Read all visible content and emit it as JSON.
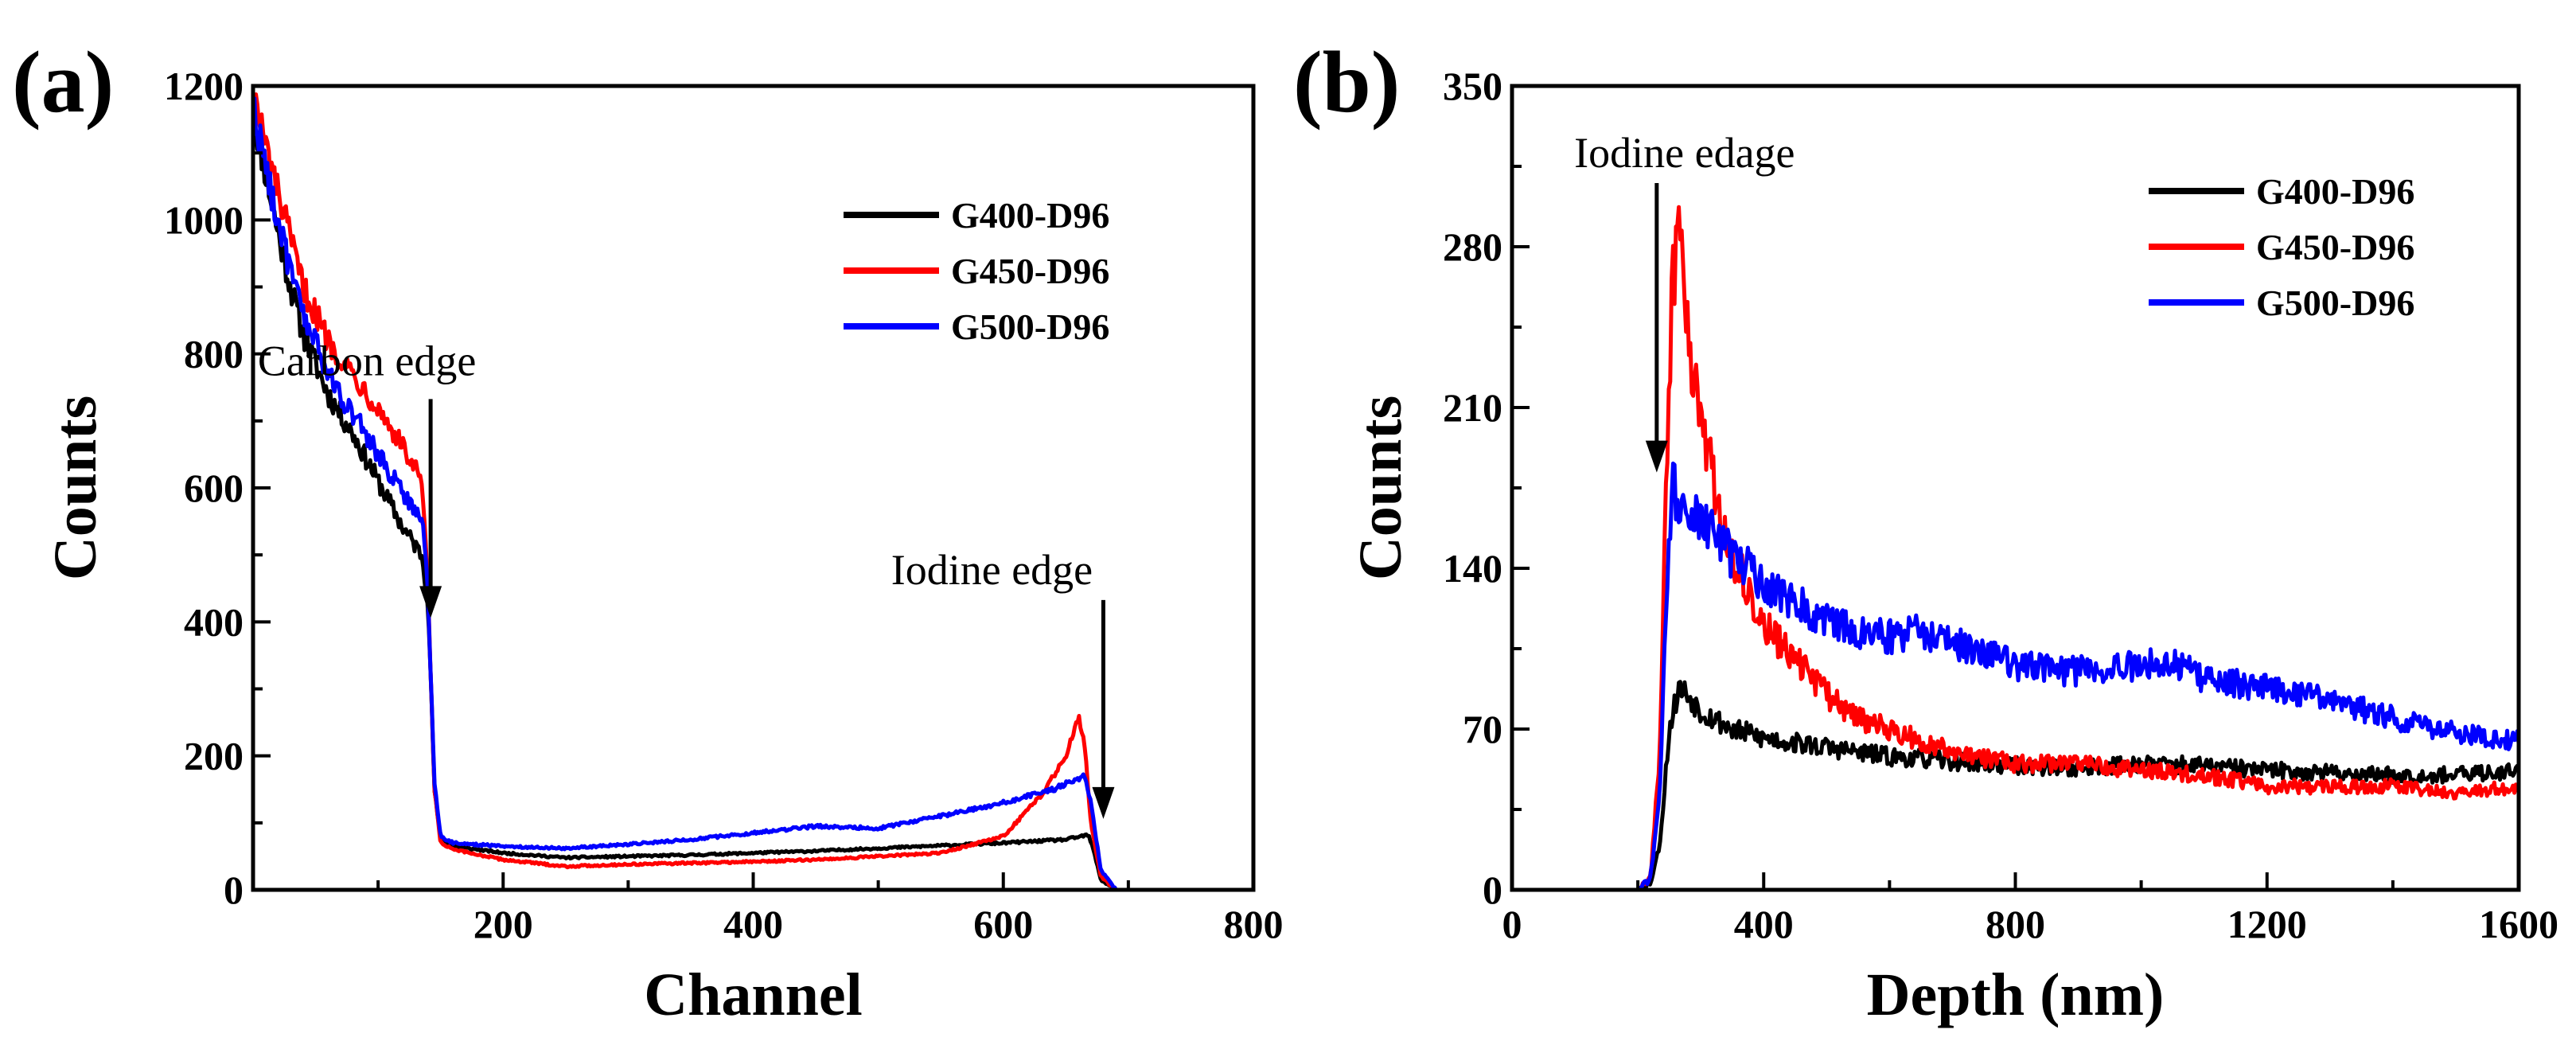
{
  "chart_data": [
    {
      "panel_label": "(a)",
      "type": "line",
      "xlabel": "Channel",
      "ylabel": "Counts",
      "xlim": [
        0,
        800
      ],
      "ylim": [
        0,
        1200
      ],
      "x_ticks": [
        200,
        400,
        600,
        800
      ],
      "y_ticks": [
        0,
        200,
        400,
        600,
        800,
        1000,
        1200
      ],
      "legend": {
        "position": "top-right",
        "entries": [
          "G400-D96",
          "G450-D96",
          "G500-D96"
        ]
      },
      "annotations": [
        {
          "text": "Carbon edge",
          "x": 142,
          "y": 400
        },
        {
          "text": "Iodine edge",
          "x": 680,
          "y": 100
        }
      ],
      "series": [
        {
          "name": "G400-D96",
          "color": "#000000",
          "points": [
            [
              0,
              1160
            ],
            [
              10,
              1070
            ],
            [
              20,
              980
            ],
            [
              30,
              900
            ],
            [
              40,
              830
            ],
            [
              60,
              740
            ],
            [
              80,
              680
            ],
            [
              100,
              610
            ],
            [
              120,
              540
            ],
            [
              135,
              500
            ],
            [
              140,
              430
            ],
            [
              145,
              150
            ],
            [
              150,
              75
            ],
            [
              160,
              65
            ],
            [
              200,
              55
            ],
            [
              250,
              48
            ],
            [
              300,
              50
            ],
            [
              350,
              52
            ],
            [
              400,
              55
            ],
            [
              450,
              58
            ],
            [
              500,
              62
            ],
            [
              550,
              66
            ],
            [
              600,
              70
            ],
            [
              650,
              75
            ],
            [
              668,
              82
            ],
            [
              672,
              60
            ],
            [
              678,
              15
            ],
            [
              690,
              0
            ],
            [
              800,
              0
            ]
          ]
        },
        {
          "name": "G450-D96",
          "color": "#ff0000",
          "points": [
            [
              0,
              1190
            ],
            [
              10,
              1110
            ],
            [
              20,
              1040
            ],
            [
              30,
              970
            ],
            [
              40,
              900
            ],
            [
              60,
              820
            ],
            [
              80,
              770
            ],
            [
              100,
              720
            ],
            [
              120,
              660
            ],
            [
              135,
              610
            ],
            [
              140,
              440
            ],
            [
              145,
              150
            ],
            [
              150,
              70
            ],
            [
              160,
              60
            ],
            [
              200,
              45
            ],
            [
              250,
              35
            ],
            [
              300,
              38
            ],
            [
              350,
              40
            ],
            [
              400,
              42
            ],
            [
              450,
              45
            ],
            [
              500,
              50
            ],
            [
              550,
              55
            ],
            [
              600,
              80
            ],
            [
              630,
              140
            ],
            [
              650,
              200
            ],
            [
              660,
              260
            ],
            [
              665,
              220
            ],
            [
              670,
              100
            ],
            [
              678,
              20
            ],
            [
              690,
              0
            ],
            [
              800,
              0
            ]
          ]
        },
        {
          "name": "G500-D96",
          "color": "#0000ff",
          "points": [
            [
              0,
              1170
            ],
            [
              10,
              1080
            ],
            [
              20,
              1000
            ],
            [
              30,
              920
            ],
            [
              40,
              860
            ],
            [
              60,
              770
            ],
            [
              80,
              710
            ],
            [
              100,
              650
            ],
            [
              120,
              590
            ],
            [
              135,
              560
            ],
            [
              140,
              440
            ],
            [
              145,
              160
            ],
            [
              150,
              80
            ],
            [
              160,
              70
            ],
            [
              200,
              65
            ],
            [
              250,
              62
            ],
            [
              300,
              68
            ],
            [
              350,
              75
            ],
            [
              400,
              85
            ],
            [
              450,
              95
            ],
            [
              500,
              92
            ],
            [
              550,
              110
            ],
            [
              600,
              130
            ],
            [
              640,
              150
            ],
            [
              665,
              170
            ],
            [
              670,
              130
            ],
            [
              678,
              30
            ],
            [
              690,
              0
            ],
            [
              800,
              0
            ]
          ]
        }
      ]
    },
    {
      "panel_label": "(b)",
      "type": "line",
      "xlabel": "Depth (nm)",
      "ylabel": "Counts",
      "xlim": [
        0,
        1600
      ],
      "ylim": [
        0,
        350
      ],
      "x_ticks": [
        0,
        400,
        800,
        1200,
        1600
      ],
      "y_ticks": [
        0,
        70,
        140,
        210,
        280,
        350
      ],
      "legend": {
        "position": "top-right",
        "entries": [
          "G400-D96",
          "G450-D96",
          "G500-D96"
        ]
      },
      "annotations": [
        {
          "text": "Iodine edage",
          "x": 230,
          "y": 180
        }
      ],
      "series": [
        {
          "name": "G400-D96",
          "color": "#000000",
          "points": [
            [
              0,
              0
            ],
            [
              200,
              0
            ],
            [
              220,
              3
            ],
            [
              235,
              20
            ],
            [
              250,
              70
            ],
            [
              265,
              88
            ],
            [
              280,
              85
            ],
            [
              300,
              78
            ],
            [
              350,
              70
            ],
            [
              400,
              66
            ],
            [
              500,
              62
            ],
            [
              600,
              58
            ],
            [
              700,
              56
            ],
            [
              800,
              54
            ],
            [
              900,
              53
            ],
            [
              1000,
              55
            ],
            [
              1100,
              54
            ],
            [
              1200,
              52
            ],
            [
              1300,
              51
            ],
            [
              1400,
              50
            ],
            [
              1500,
              50
            ],
            [
              1600,
              52
            ]
          ]
        },
        {
          "name": "G450-D96",
          "color": "#ff0000",
          "points": [
            [
              0,
              0
            ],
            [
              200,
              0
            ],
            [
              220,
              5
            ],
            [
              235,
              60
            ],
            [
              245,
              180
            ],
            [
              255,
              260
            ],
            [
              262,
              290
            ],
            [
              270,
              270
            ],
            [
              280,
              240
            ],
            [
              300,
              210
            ],
            [
              330,
              160
            ],
            [
              360,
              140
            ],
            [
              400,
              115
            ],
            [
              450,
              100
            ],
            [
              500,
              85
            ],
            [
              550,
              75
            ],
            [
              600,
              70
            ],
            [
              700,
              60
            ],
            [
              800,
              55
            ],
            [
              900,
              55
            ],
            [
              1000,
              52
            ],
            [
              1100,
              50
            ],
            [
              1200,
              45
            ],
            [
              1300,
              45
            ],
            [
              1400,
              45
            ],
            [
              1500,
              42
            ],
            [
              1600,
              45
            ]
          ]
        },
        {
          "name": "G500-D96",
          "color": "#0000ff",
          "points": [
            [
              0,
              0
            ],
            [
              200,
              0
            ],
            [
              220,
              5
            ],
            [
              235,
              40
            ],
            [
              245,
              130
            ],
            [
              255,
              175
            ],
            [
              270,
              170
            ],
            [
              300,
              160
            ],
            [
              350,
              145
            ],
            [
              400,
              135
            ],
            [
              450,
              125
            ],
            [
              500,
              118
            ],
            [
              550,
              112
            ],
            [
              600,
              110
            ],
            [
              650,
              112
            ],
            [
              700,
              108
            ],
            [
              800,
              98
            ],
            [
              900,
              95
            ],
            [
              1000,
              98
            ],
            [
              1050,
              100
            ],
            [
              1100,
              92
            ],
            [
              1200,
              88
            ],
            [
              1300,
              82
            ],
            [
              1400,
              75
            ],
            [
              1500,
              68
            ],
            [
              1600,
              65
            ]
          ]
        }
      ]
    }
  ]
}
